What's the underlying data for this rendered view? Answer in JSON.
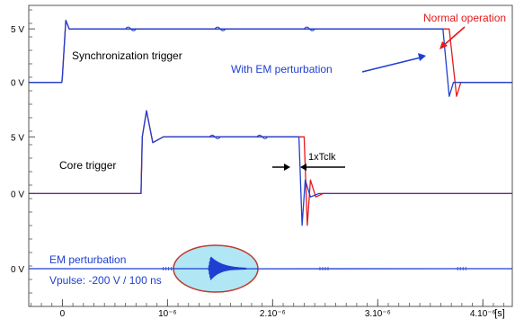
{
  "chart_data": {
    "type": "line",
    "xlabel": "[s]",
    "x_ticks": [
      "0",
      "10⁻⁶",
      "2.10⁻⁶",
      "3.10⁻⁶",
      "4.10⁻⁶"
    ],
    "x_tick_values": [
      0,
      1e-06,
      2e-06,
      3e-06,
      4e-06
    ],
    "x_range": [
      -3.2e-07,
      4.28e-06
    ],
    "grid": false,
    "panels": [
      {
        "label": "Synchronization trigger",
        "y_ticks": [
          "5 V",
          "0 V"
        ],
        "y_tick_values": [
          5,
          0
        ],
        "y_range": [
          -1.7,
          7.7
        ],
        "annotations": [
          "Normal operation",
          "With EM perturbation"
        ],
        "series": [
          {
            "color": "#e41a1c",
            "x": [
              -3.2e-07,
              -5e-09,
              0,
              3.2e-08,
              6.5e-08,
              3.655e-06,
              3.68e-06,
              3.75e-06,
              3.79e-06,
              4.28e-06
            ],
            "values": [
              0,
              0,
              0.5,
              5.8,
              5.0,
              5.0,
              5.0,
              -1.3,
              0,
              0
            ]
          },
          {
            "color": "#1f3fd0",
            "x": [
              -3.2e-07,
              -5e-09,
              0,
              3.2e-08,
              6.5e-08,
              3.6e-06,
              3.62e-06,
              3.68e-06,
              3.72e-06,
              4.28e-06
            ],
            "values": [
              0,
              0,
              0.5,
              5.8,
              5.0,
              5.0,
              5.0,
              -1.3,
              0,
              0
            ]
          }
        ]
      },
      {
        "label": "Core trigger",
        "y_ticks": [
          "5 V",
          "0 V"
        ],
        "y_tick_values": [
          5,
          0
        ],
        "y_range": [
          -3.3,
          8.2
        ],
        "annotations": [
          "1xTclk"
        ],
        "series": [
          {
            "color": "#e41a1c",
            "x": [
              -3.2e-07,
              7.48e-07,
              7.6e-07,
              8e-07,
              8.6e-07,
              9.6e-07,
              2.26e-06,
              2.3e-06,
              2.33e-06,
              2.36e-06,
              2.41e-06,
              2.48e-06,
              4.28e-06
            ],
            "values": [
              0,
              0,
              5.0,
              7.3,
              4.5,
              5.0,
              5.0,
              5.0,
              -2.8,
              1.2,
              -0.3,
              0,
              0
            ]
          },
          {
            "color": "#1f3fd0",
            "x": [
              -3.2e-07,
              7.48e-07,
              7.6e-07,
              8e-07,
              8.6e-07,
              9.6e-07,
              2.23e-06,
              2.25e-06,
              2.28e-06,
              2.31e-06,
              2.36e-06,
              2.44e-06,
              4.28e-06
            ],
            "values": [
              0,
              0,
              5.0,
              7.3,
              4.5,
              5.0,
              5.0,
              5.0,
              -2.8,
              1.2,
              -0.3,
              0,
              0
            ]
          }
        ]
      },
      {
        "label": "EM perturbation",
        "sublabel": "Vpulse: -200 V / 100 ns",
        "y_ticks": [
          "0 V"
        ],
        "y_tick_values": [
          0
        ],
        "y_range": [
          -1,
          1
        ],
        "series": [
          {
            "color": "#1f3fd0",
            "x": [
              -3.2e-07,
              1.39e-06,
              1.75e-06,
              4.28e-06
            ],
            "values": [
              0,
              0,
              0,
              0
            ],
            "burst_start": 1.39e-06,
            "burst_end": 1.75e-06
          }
        ]
      }
    ]
  }
}
